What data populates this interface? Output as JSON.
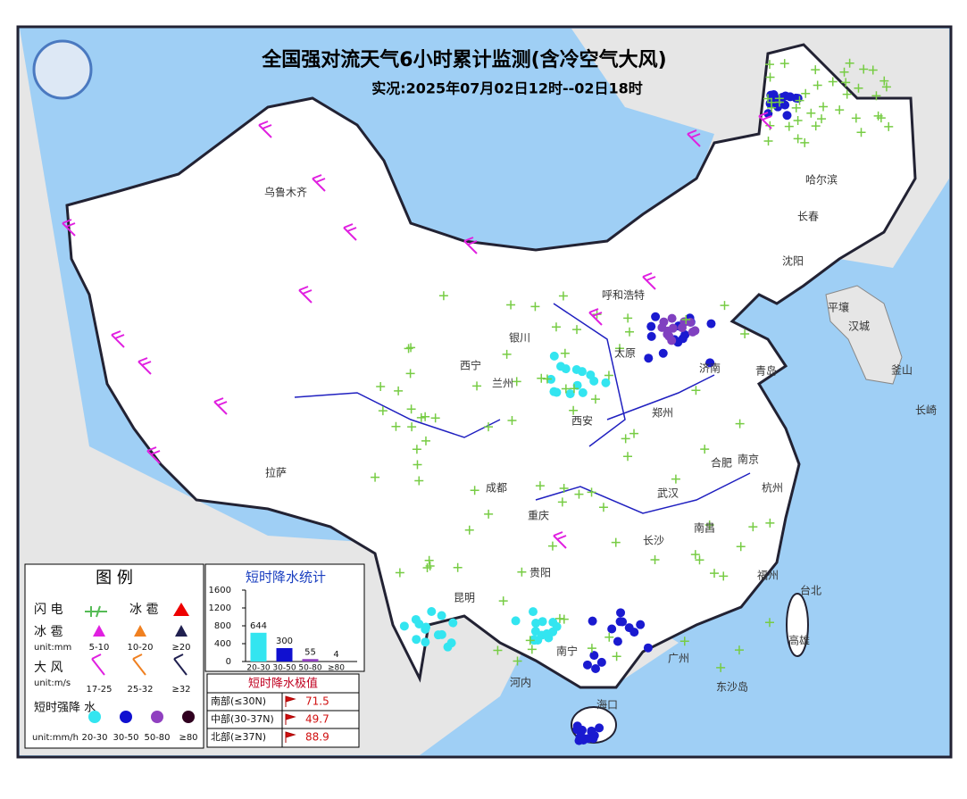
{
  "header": {
    "title": "全国强对流天气6小时累计监测(含冷空气大风)",
    "subtitle": "实况:2025年07月02日12时--02日18时"
  },
  "cities": [
    "乌鲁木齐",
    "哈尔滨",
    "长春",
    "沈阳",
    "呼和浩特",
    "银川",
    "西宁",
    "太原",
    "济南",
    "青岛",
    "郑州",
    "西安",
    "兰州",
    "拉萨",
    "成都",
    "重庆",
    "武汉",
    "合肥",
    "南京",
    "杭州",
    "南昌",
    "长沙",
    "贵阳",
    "昆明",
    "南宁",
    "广州",
    "福州",
    "台北",
    "高雄",
    "海口",
    "平壤",
    "汉城",
    "釜山",
    "长崎",
    "河内",
    "东沙岛"
  ],
  "legend": {
    "title": "图 例",
    "lightning": "闪 电",
    "hail_head": "冰 雹",
    "hail": "冰 雹",
    "hail_unit": "unit:mm",
    "hail_levels": [
      "5-10",
      "10-20",
      "≥20"
    ],
    "wind": "大 风",
    "wind_unit": "unit:m/s",
    "wind_levels": [
      "17-25",
      "25-32",
      "≥32"
    ],
    "rain": "短时强降 水",
    "rain_unit": "unit:mm/h",
    "rain_levels": [
      "20-30",
      "30-50",
      "50-80",
      "≥80"
    ]
  },
  "chart_data": {
    "type": "bar",
    "title": "短时降水统计",
    "categories": [
      "20-30",
      "30-50",
      "50-80",
      "≥80"
    ],
    "values": [
      644,
      300,
      55,
      4
    ],
    "colors": [
      "#33e5f0",
      "#1010d0",
      "#9040c0",
      "#300020"
    ],
    "ylim": [
      0,
      1600
    ],
    "yticks": [
      0,
      400,
      800,
      1200,
      1600
    ]
  },
  "extremes": {
    "title": "短时降水极值",
    "rows": [
      [
        "南部(≤30N)",
        71.5
      ],
      [
        "中部(30-37N)",
        49.7
      ],
      [
        "北部(≥37N)",
        88.9
      ]
    ]
  }
}
